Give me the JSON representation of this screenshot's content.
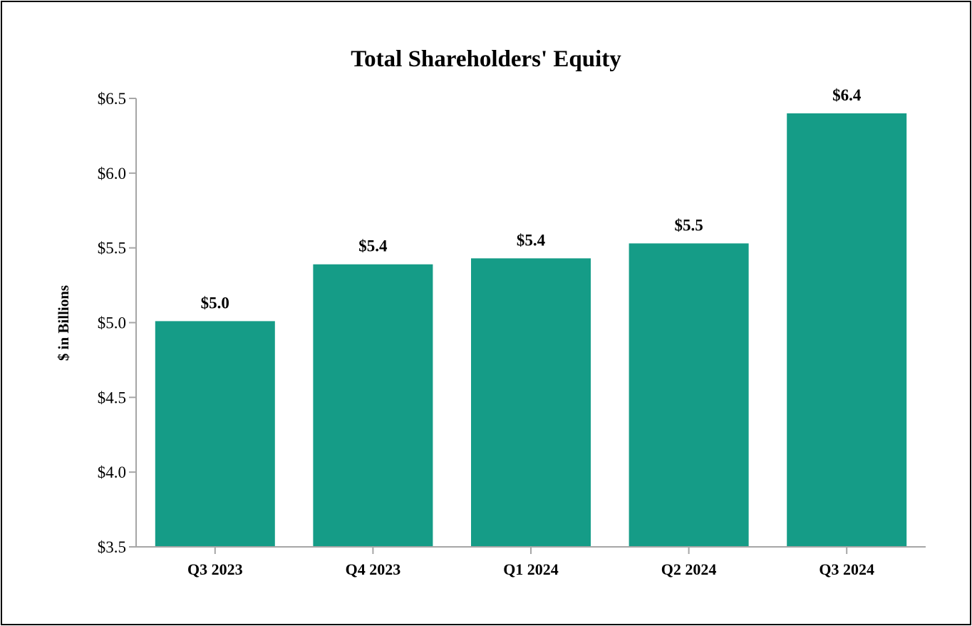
{
  "chart_data": {
    "type": "bar",
    "title": "Total Shareholders' Equity",
    "xlabel": "",
    "ylabel": "$ in Billions",
    "categories": [
      "Q3 2023",
      "Q4 2023",
      "Q1 2024",
      "Q2 2024",
      "Q3 2024"
    ],
    "values": [
      5.01,
      5.39,
      5.43,
      5.53,
      6.4
    ],
    "data_labels": [
      "$5.0",
      "$5.4",
      "$5.4",
      "$5.5",
      "$6.4"
    ],
    "ylim": [
      3.5,
      6.5
    ],
    "yticks": [
      3.5,
      4.0,
      4.5,
      5.0,
      5.5,
      6.0,
      6.5
    ],
    "ytick_labels": [
      "$3.5",
      "$4.0",
      "$4.5",
      "$5.0",
      "$5.5",
      "$6.0",
      "$6.5"
    ],
    "grid": false,
    "bar_color": "#159c87",
    "axis_color": "#a6a6a6"
  }
}
